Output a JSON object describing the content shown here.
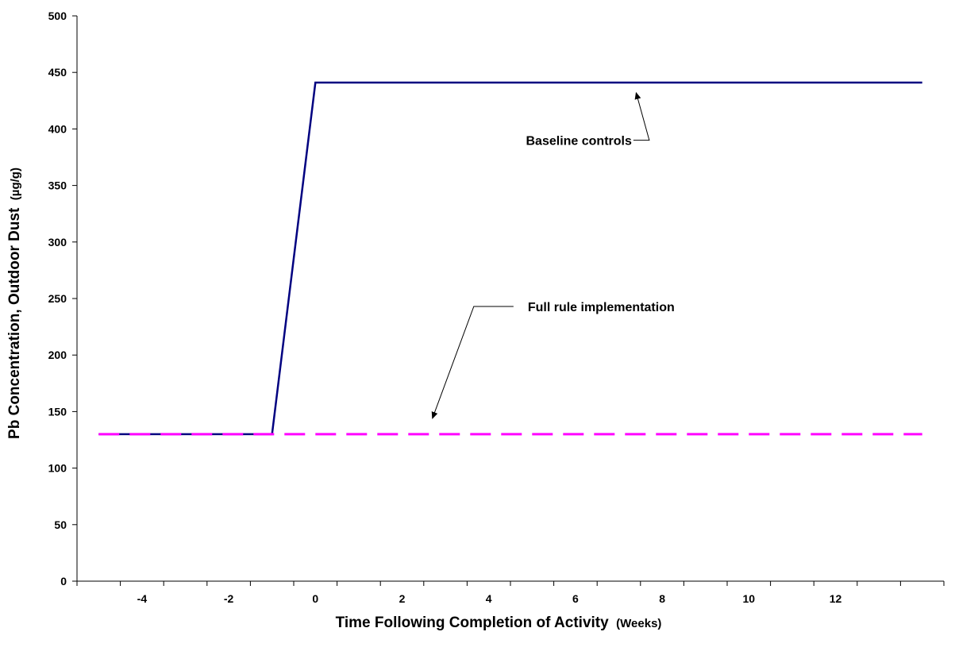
{
  "chart_data": {
    "type": "line",
    "xlabel": "Time Following Completion of Activity",
    "xlabel_unit": "(Weeks)",
    "ylabel": "Pb Concentration, Outdoor Dust",
    "ylabel_unit": "(µg/g)",
    "xlim": [
      -5.5,
      14.5
    ],
    "ylim": [
      0,
      500
    ],
    "x_ticks": [
      -4,
      -2,
      0,
      2,
      4,
      6,
      8,
      10,
      12
    ],
    "y_ticks": [
      0,
      50,
      100,
      150,
      200,
      250,
      300,
      350,
      400,
      450,
      500
    ],
    "grid": false,
    "legend": "none",
    "series": [
      {
        "name": "Baseline controls",
        "color": "#000080",
        "style": "solid",
        "x": [
          -5,
          -1,
          0,
          14
        ],
        "y": [
          130,
          130,
          441,
          441
        ]
      },
      {
        "name": "Full rule implementation",
        "color": "#ff00ff",
        "style": "dashed",
        "x": [
          -5,
          14
        ],
        "y": [
          130,
          130
        ]
      }
    ],
    "annotations": [
      {
        "text": "Baseline controls",
        "text_x": 7.3,
        "text_y": 390,
        "arrow_to_x": 7.4,
        "arrow_to_y": 432
      },
      {
        "text": "Full rule implementation",
        "text_x": 4.9,
        "text_y": 243,
        "arrow_to_x": 2.7,
        "arrow_to_y": 144
      }
    ]
  }
}
